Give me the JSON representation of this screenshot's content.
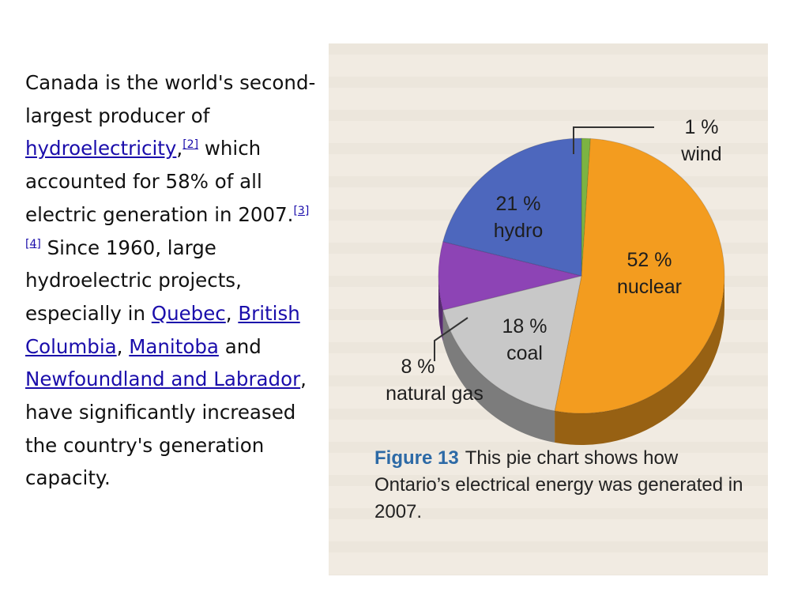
{
  "paragraph": {
    "t1": "Canada is the world's second-largest producer of ",
    "link_hydro": "hydroelectricity",
    "t2": ",",
    "ref2": "[2]",
    "t3": " which accounted for 58% of all electric generation in 2007.",
    "ref34": "[3][4]",
    "t4": " Since 1960, large hydroelectric projects, especially in ",
    "link_quebec": "Quebec",
    "t5": ", ",
    "link_bc": "British Columbia",
    "t6": ", ",
    "link_manitoba": "Manitoba",
    "t7": " and ",
    "link_nl": "Newfoundland and Labrador",
    "t8": ", have significantly increased the country's generation capacity."
  },
  "figure": {
    "label": "Figure 13",
    "caption": "This pie chart shows how Ontario’s electrical energy was generated in 2007."
  },
  "chart_data": {
    "type": "pie",
    "slices": [
      {
        "label": "wind",
        "value": 1,
        "value_text": "1 %",
        "color": "#7cb342"
      },
      {
        "label": "nuclear",
        "value": 52,
        "value_text": "52 %",
        "color": "#f39c1f"
      },
      {
        "label": "coal",
        "value": 18,
        "value_text": "18 %",
        "color": "#c8c8c8"
      },
      {
        "label": "natural gas",
        "value": 8,
        "value_text": "8 %",
        "color": "#8d44b5"
      },
      {
        "label": "hydro",
        "value": 21,
        "value_text": "21 %",
        "color": "#4d67bd"
      }
    ]
  }
}
